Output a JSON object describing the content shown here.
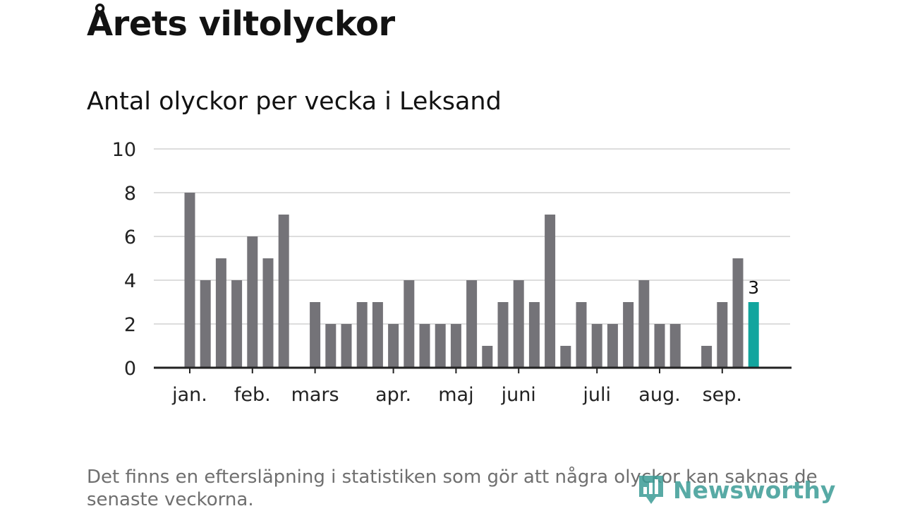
{
  "header": {
    "title": "Årets viltolyckor",
    "subtitle": "Antal olyckor per vecka i Leksand"
  },
  "footer": {
    "note": "Det finns en eftersläpning i statistiken som gör att några olyckor kan saknas de senaste veckorna.",
    "logo_text": "Newsworthy"
  },
  "colors": {
    "bar": "#747378",
    "highlight": "#12a59e",
    "grid": "#dddddd",
    "axis": "#222222",
    "logo": "#3c9c96"
  },
  "chart_data": {
    "type": "bar",
    "title": "Antal olyckor per vecka i Leksand",
    "xlabel": "",
    "ylabel": "",
    "ylim": [
      0,
      10
    ],
    "y_ticks": [
      0,
      2,
      4,
      6,
      8,
      10
    ],
    "grid": true,
    "x_month_labels": [
      {
        "label": "jan.",
        "week": 1
      },
      {
        "label": "feb.",
        "week": 5
      },
      {
        "label": "mars",
        "week": 9
      },
      {
        "label": "apr.",
        "week": 14
      },
      {
        "label": "maj",
        "week": 18
      },
      {
        "label": "juni",
        "week": 22
      },
      {
        "label": "juli",
        "week": 27
      },
      {
        "label": "aug.",
        "week": 31
      },
      {
        "label": "sep.",
        "week": 35
      }
    ],
    "weeks": [
      1,
      2,
      3,
      4,
      5,
      6,
      7,
      8,
      9,
      10,
      11,
      12,
      13,
      14,
      15,
      16,
      17,
      18,
      19,
      20,
      21,
      22,
      23,
      24,
      25,
      26,
      27,
      28,
      29,
      30,
      31,
      32,
      33,
      34,
      35,
      36,
      37
    ],
    "values": [
      8,
      4,
      5,
      4,
      6,
      5,
      7,
      0,
      3,
      2,
      2,
      3,
      3,
      2,
      4,
      2,
      2,
      2,
      4,
      1,
      3,
      4,
      3,
      7,
      1,
      3,
      2,
      2,
      3,
      4,
      2,
      2,
      0,
      1,
      3,
      5,
      3
    ],
    "highlight_index": 36,
    "highlight_label": "3"
  }
}
